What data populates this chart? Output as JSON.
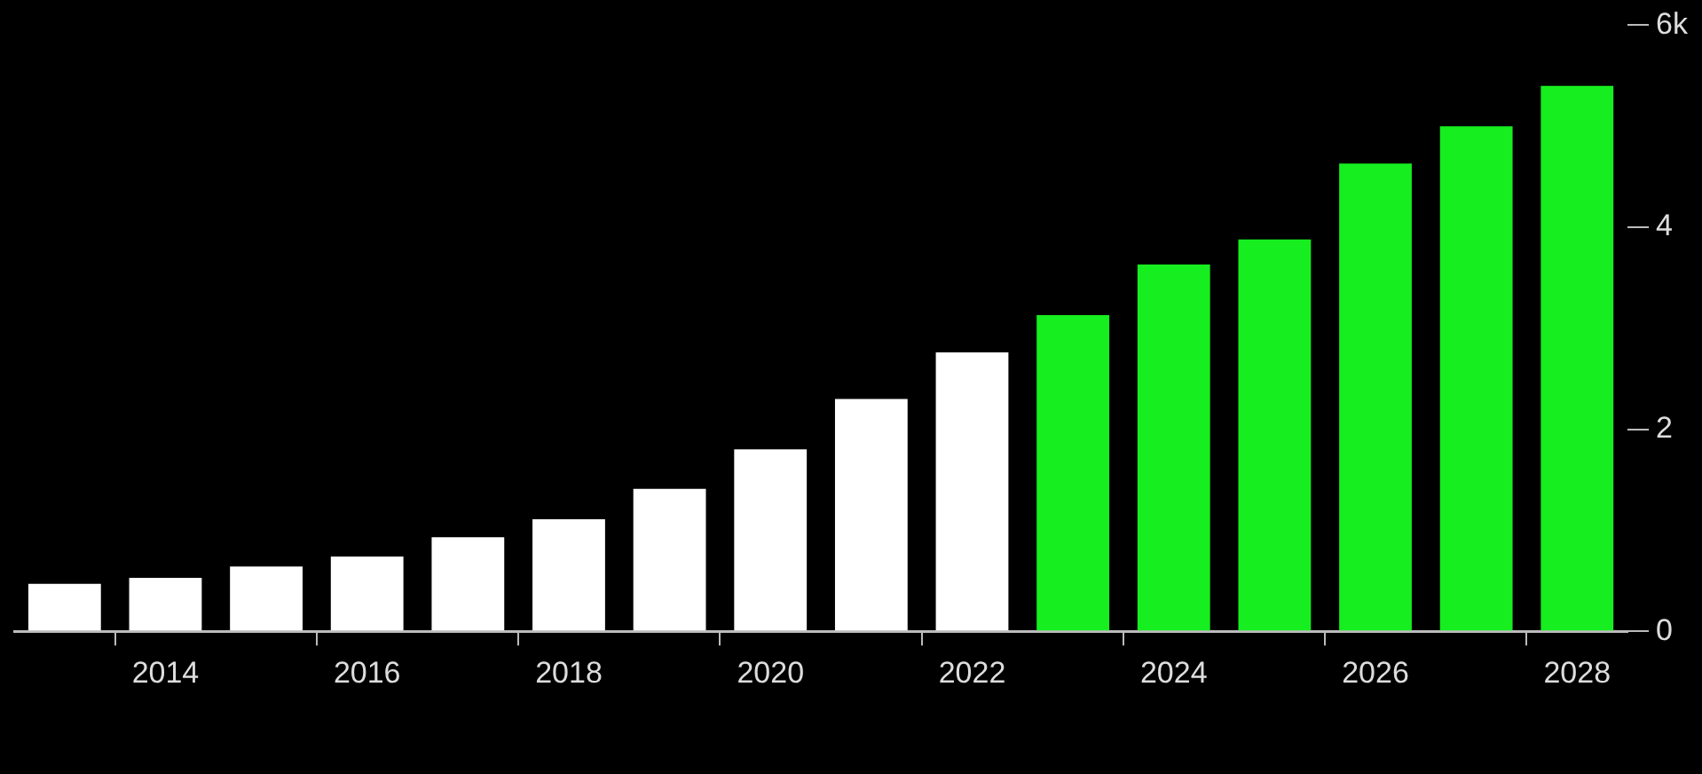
{
  "chart_data": {
    "type": "bar",
    "categories": [
      null,
      "2014",
      null,
      "2016",
      null,
      "2018",
      null,
      "2020",
      null,
      "2022",
      null,
      "2024",
      null,
      "2026",
      null,
      "2028"
    ],
    "values": [
      0.47,
      0.53,
      0.64,
      0.74,
      0.93,
      1.11,
      1.41,
      1.8,
      2.3,
      2.76,
      3.13,
      3.63,
      3.88,
      4.63,
      5.0,
      5.4
    ],
    "colors": [
      "#ffffff",
      "#ffffff",
      "#ffffff",
      "#ffffff",
      "#ffffff",
      "#ffffff",
      "#ffffff",
      "#ffffff",
      "#ffffff",
      "#ffffff",
      "#16ee1f",
      "#16ee1f",
      "#16ee1f",
      "#16ee1f",
      "#16ee1f",
      "#16ee1f"
    ],
    "ylim": [
      0,
      6
    ],
    "yticks": [
      0,
      2,
      4,
      {
        "value": 6,
        "label": "6k"
      }
    ],
    "legend": false
  }
}
